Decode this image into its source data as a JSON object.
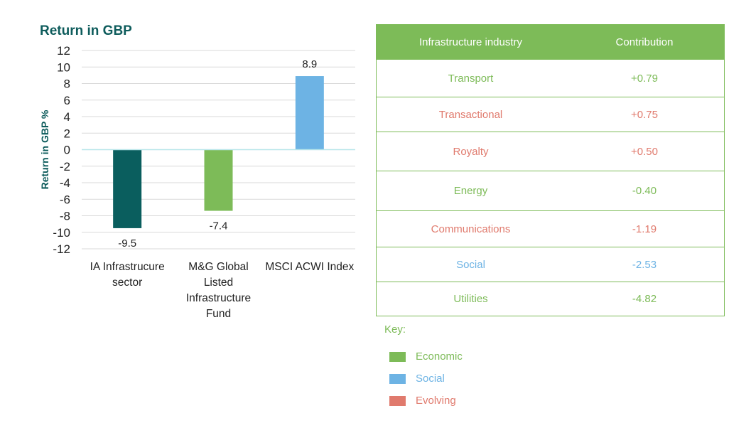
{
  "chart_data": {
    "type": "bar",
    "title": "Return in GBP",
    "ylabel": "Return in GBP %",
    "xlabel": "",
    "ylim": [
      -12,
      12
    ],
    "yticks": [
      12,
      10,
      8,
      6,
      4,
      2,
      0,
      -2,
      -4,
      -6,
      -8,
      -10,
      -12
    ],
    "grid": true,
    "categories": [
      [
        "IA Infrastrucure",
        "sector"
      ],
      [
        "M&G Global",
        "Listed",
        "Infrastructure",
        "Fund"
      ],
      [
        "MSCI ACWI Index"
      ]
    ],
    "values": [
      -9.5,
      -7.4,
      8.9
    ],
    "value_labels": [
      "-9.5",
      "-7.4",
      "8.9"
    ],
    "colors": [
      "#0a5e5e",
      "#7dbb58",
      "#6db3e4"
    ],
    "gridline_color": "#d9d9d9",
    "zero_line_color": "#b8e6ea"
  },
  "table": {
    "headers": [
      "Infrastructure industry",
      "Contribution"
    ],
    "rows": [
      {
        "industry": "Transport",
        "contribution": "+0.79",
        "color": "#7dbb58"
      },
      {
        "industry": "Transactional",
        "contribution": "+0.75",
        "color": "#e07a6d"
      },
      {
        "industry": "Royalty",
        "contribution": "+0.50",
        "color": "#e07a6d"
      },
      {
        "industry": "Energy",
        "contribution": "-0.40",
        "color": "#7dbb58"
      },
      {
        "industry": "Communications",
        "contribution": "-1.19",
        "color": "#e07a6d"
      },
      {
        "industry": "Social",
        "contribution": "-2.53",
        "color": "#6db3e4"
      },
      {
        "industry": "Utilities",
        "contribution": "-4.82",
        "color": "#7dbb58"
      }
    ]
  },
  "key": {
    "title": "Key:",
    "items": [
      {
        "label": "Economic",
        "color": "#7dbb58"
      },
      {
        "label": "Social",
        "color": "#6db3e4"
      },
      {
        "label": "Evolving",
        "color": "#e07a6d"
      }
    ]
  }
}
